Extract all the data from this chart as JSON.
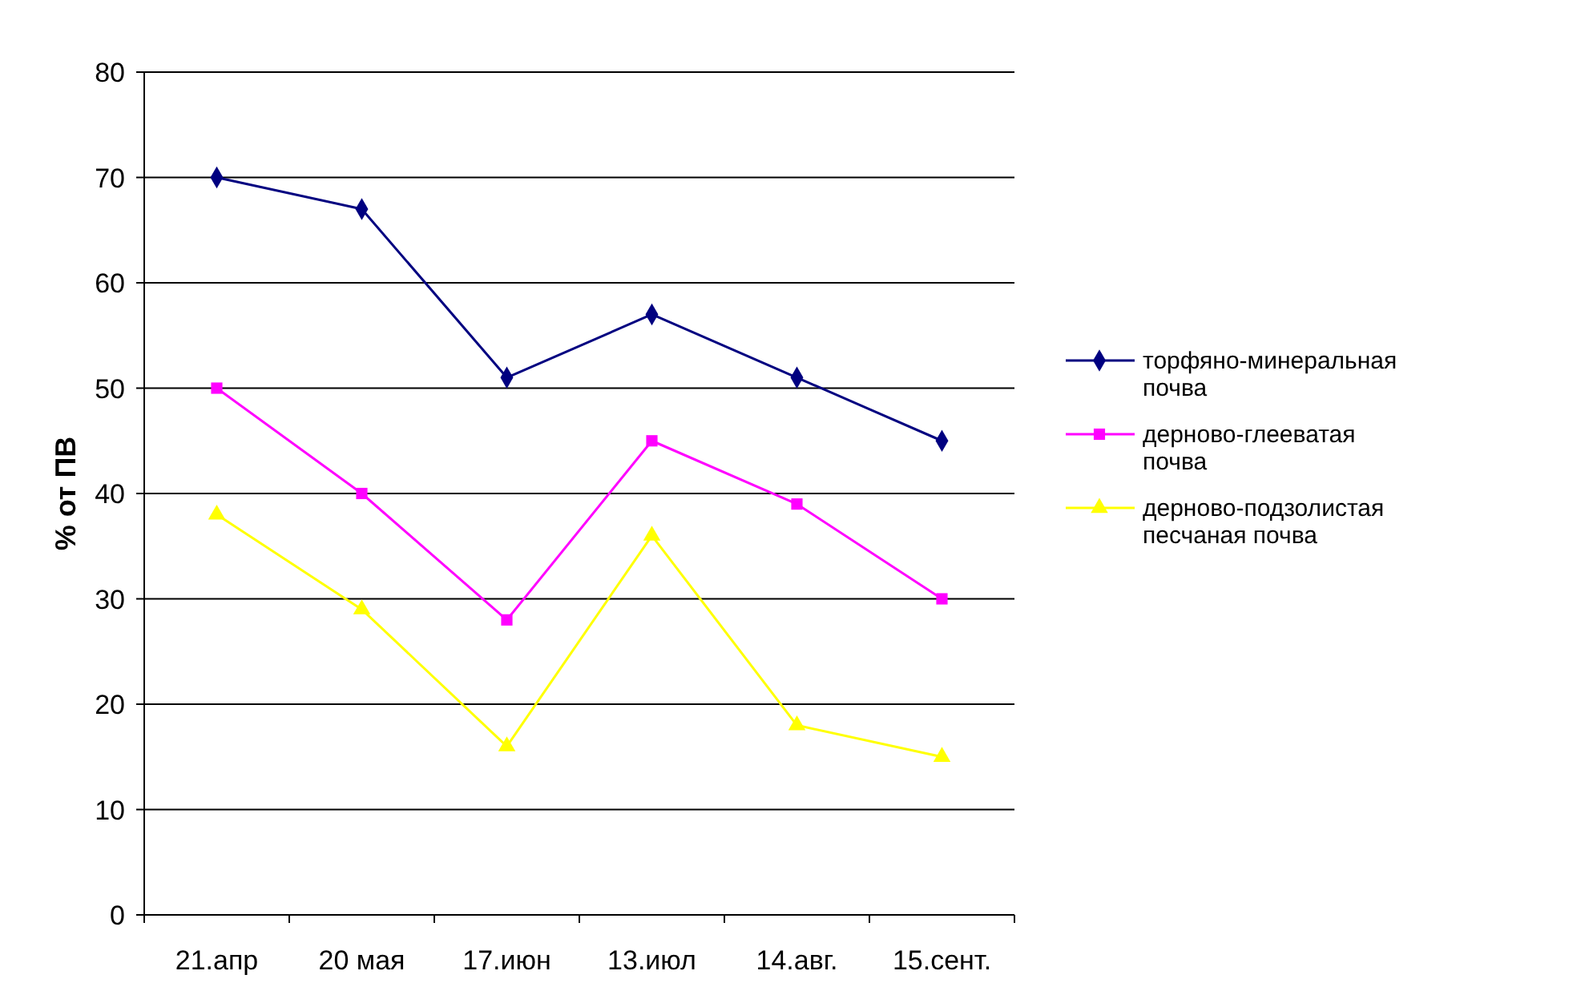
{
  "chart_data": {
    "type": "line",
    "ylabel": "% от ПВ",
    "categories": [
      "21.апр",
      "20 мая",
      "17.июн",
      "13.июл",
      "14.авг.",
      "15.сент."
    ],
    "series": [
      {
        "name": "торфяно-минеральная почва",
        "color": "#000080",
        "marker": "diamond",
        "values": [
          70,
          67,
          51,
          57,
          51,
          45
        ]
      },
      {
        "name": "дерново-глееватая почва",
        "color": "#ff00ff",
        "marker": "square",
        "values": [
          50,
          40,
          28,
          45,
          39,
          30
        ]
      },
      {
        "name": "дерново-подзолистая песчаная почва",
        "color": "#ffff00",
        "marker": "triangle",
        "values": [
          38,
          29,
          16,
          36,
          18,
          15
        ]
      }
    ],
    "ylim": [
      0,
      80
    ],
    "yticks": [
      0,
      10,
      20,
      30,
      40,
      50,
      60,
      70,
      80
    ],
    "grid": "y",
    "legend": "right"
  }
}
